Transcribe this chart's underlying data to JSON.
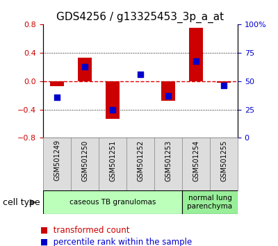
{
  "title": "GDS4256 / g13325453_3p_a_at",
  "samples": [
    "GSM501249",
    "GSM501250",
    "GSM501251",
    "GSM501252",
    "GSM501253",
    "GSM501254",
    "GSM501255"
  ],
  "transformed_count": [
    -0.07,
    0.33,
    -0.53,
    0.0,
    -0.28,
    0.75,
    -0.02
  ],
  "percentile_rank": [
    36,
    63,
    25,
    56,
    37,
    68,
    46
  ],
  "ylim_left": [
    -0.8,
    0.8
  ],
  "ylim_right": [
    0,
    100
  ],
  "yticks_left": [
    -0.8,
    -0.4,
    0.0,
    0.4,
    0.8
  ],
  "yticks_right": [
    0,
    25,
    50,
    75,
    100
  ],
  "ytick_labels_right": [
    "0",
    "25",
    "50",
    "75",
    "100%"
  ],
  "cell_type_groups": [
    {
      "label": "caseous TB granulomas",
      "start": 0,
      "end": 5,
      "color": "#bbffbb"
    },
    {
      "label": "normal lung\nparenchyma",
      "start": 5,
      "end": 7,
      "color": "#99ee99"
    }
  ],
  "bar_color": "#cc0000",
  "dot_color": "#0000cc",
  "bar_width": 0.5,
  "dot_size": 40,
  "grid_color": "#000000",
  "zero_line_color": "#dd0000",
  "bg_color": "#ffffff",
  "title_fontsize": 11,
  "tick_fontsize": 8,
  "label_fontsize": 9,
  "legend_fontsize": 8.5,
  "cell_type_label": "cell type",
  "legend_items": [
    {
      "label": "transformed count",
      "color": "#cc0000"
    },
    {
      "label": "percentile rank within the sample",
      "color": "#0000cc"
    }
  ]
}
